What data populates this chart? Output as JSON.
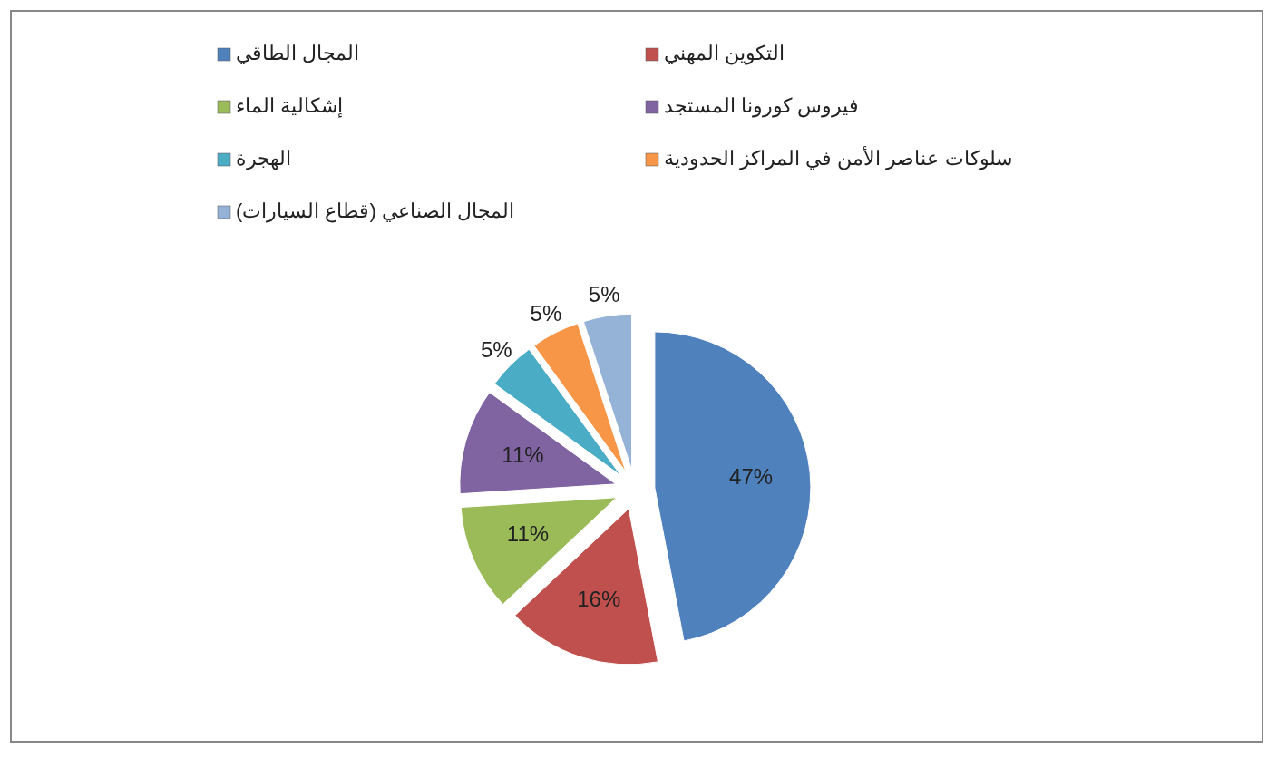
{
  "chart_data": {
    "type": "pie",
    "categories": [
      "المجال الطاقي",
      "التكوين المهني",
      "إشكالية الماء",
      "فيروس كورونا المستجد",
      "الهجرة",
      "سلوكات عناصر الأمن في المراكز الحدودية",
      "المجال الصناعي (قطاع السيارات)"
    ],
    "values": [
      47,
      16,
      11,
      11,
      5,
      5,
      5
    ],
    "colors": [
      "#4f81bd",
      "#c0504d",
      "#9bbb59",
      "#8064a2",
      "#4bacc6",
      "#f79646",
      "#95b3d7"
    ],
    "value_labels": [
      "47%",
      "16%",
      "11%",
      "11%",
      "5%",
      "5%",
      "5%"
    ],
    "legend": "top"
  }
}
